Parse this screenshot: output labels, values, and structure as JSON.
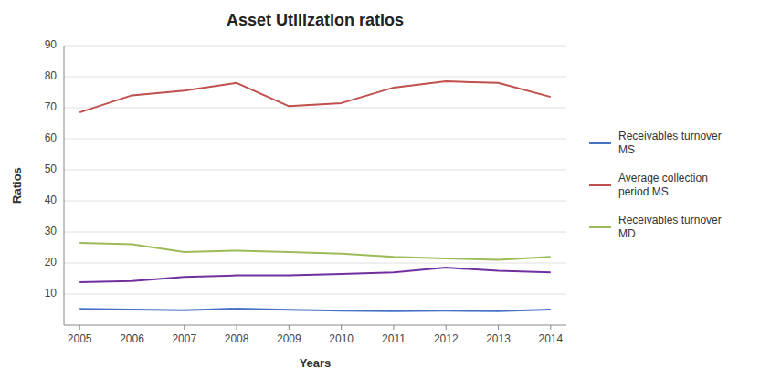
{
  "chart_data": {
    "type": "line",
    "title": "Asset Utilization ratios",
    "xlabel": "Years",
    "ylabel": "Ratios",
    "x": [
      2005,
      2006,
      2007,
      2008,
      2009,
      2010,
      2011,
      2012,
      2013,
      2014
    ],
    "xlim": [
      2004.7,
      2014.3
    ],
    "xticks": [
      2005,
      2006,
      2007,
      2008,
      2009,
      2010,
      2011,
      2012,
      2013,
      2014
    ],
    "ylim": [
      0,
      90
    ],
    "yticks": [
      10,
      20,
      30,
      40,
      50,
      60,
      70,
      80,
      90
    ],
    "grid": true,
    "legend": "right",
    "series": [
      {
        "name": "Receivables turnover\nMS",
        "color": "#4472c4",
        "values": [
          5.2,
          5.0,
          4.8,
          5.3,
          4.9,
          4.6,
          4.5,
          4.6,
          4.5,
          5.0
        ]
      },
      {
        "name": "Average collection\nperiod MS",
        "color": "#c0504d",
        "values": [
          68.5,
          74.0,
          75.5,
          78.0,
          70.5,
          71.5,
          76.5,
          78.5,
          78.0,
          73.5
        ]
      },
      {
        "name": "Receivables turnover\nMD",
        "color": "#9bbb59",
        "values": [
          26.5,
          26.0,
          23.5,
          24.0,
          23.5,
          23.0,
          22.0,
          21.5,
          21.0,
          22.0
        ]
      },
      {
        "color": "#7030a0",
        "values": [
          13.8,
          14.2,
          15.5,
          16.0,
          16.0,
          16.5,
          17.0,
          18.5,
          17.5,
          17.0
        ]
      }
    ]
  }
}
